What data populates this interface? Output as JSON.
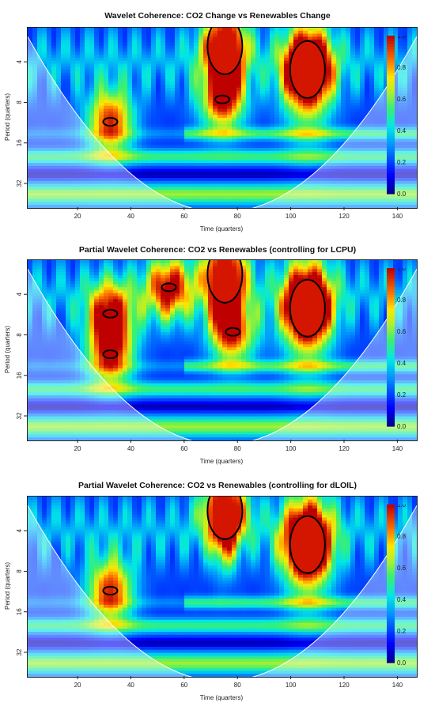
{
  "chart_data": [
    {
      "type": "heatmap",
      "title": "Wavelet Coherence: CO2 Change vs Renewables Change",
      "xlabel": "Time (quarters)",
      "ylabel": "Period (quarters)",
      "x_ticks": [
        20,
        40,
        60,
        80,
        100,
        120,
        140
      ],
      "y_ticks": [
        "4",
        "8",
        "16",
        "32"
      ],
      "xlim": [
        1,
        147
      ],
      "colorbar": {
        "ticks": [
          "0.0",
          "0.2",
          "0.4",
          "0.6",
          "0.8",
          "1.0"
        ],
        "range": [
          0,
          1
        ]
      },
      "colors": {
        "low": "#00008b",
        "mid": "#00ff7f",
        "high": "#b30000"
      },
      "significant_regions": [
        {
          "time": 75,
          "period": 3.0,
          "coherence": 0.95
        },
        {
          "time": 106,
          "period": 4.5,
          "coherence": 0.97
        },
        {
          "time": 32,
          "period": 11.0,
          "coherence": 0.85
        },
        {
          "time": 74,
          "period": 7.5,
          "coherence": 0.8
        }
      ]
    },
    {
      "type": "heatmap",
      "title": "Partial Wavelet Coherence: CO2 vs Renewables (controlling for LCPU)",
      "xlabel": "Time (quarters)",
      "ylabel": "Period (quarters)",
      "x_ticks": [
        20,
        40,
        60,
        80,
        100,
        120,
        140
      ],
      "y_ticks": [
        "4",
        "8",
        "16",
        "32"
      ],
      "xlim": [
        1,
        147
      ],
      "colorbar": {
        "ticks": [
          "0.0",
          "0.2",
          "0.4",
          "0.6",
          "0.8",
          "1.0"
        ],
        "range": [
          0,
          1
        ]
      },
      "significant_regions": [
        {
          "time": 75,
          "period": 2.8,
          "coherence": 0.95
        },
        {
          "time": 106,
          "period": 5.0,
          "coherence": 0.97
        },
        {
          "time": 32,
          "period": 11.0,
          "coherence": 0.85
        },
        {
          "time": 32,
          "period": 5.5,
          "coherence": 0.8
        },
        {
          "time": 54,
          "period": 3.5,
          "coherence": 0.8
        },
        {
          "time": 78,
          "period": 7.5,
          "coherence": 0.8
        }
      ]
    },
    {
      "type": "heatmap",
      "title": "Partial Wavelet Coherence: CO2 vs Renewables (controlling for dLOIL)",
      "xlabel": "Time (quarters)",
      "ylabel": "Period (quarters)",
      "x_ticks": [
        20,
        40,
        60,
        80,
        100,
        120,
        140
      ],
      "y_ticks": [
        "4",
        "8",
        "16",
        "32"
      ],
      "xlim": [
        1,
        147
      ],
      "colorbar": {
        "ticks": [
          "0.0",
          "0.2",
          "0.4",
          "0.6",
          "0.8",
          "1.0"
        ],
        "range": [
          0,
          1
        ]
      },
      "significant_regions": [
        {
          "time": 75,
          "period": 2.8,
          "coherence": 0.95
        },
        {
          "time": 106,
          "period": 5.0,
          "coherence": 0.97
        },
        {
          "time": 32,
          "period": 11.0,
          "coherence": 0.85
        }
      ]
    }
  ]
}
